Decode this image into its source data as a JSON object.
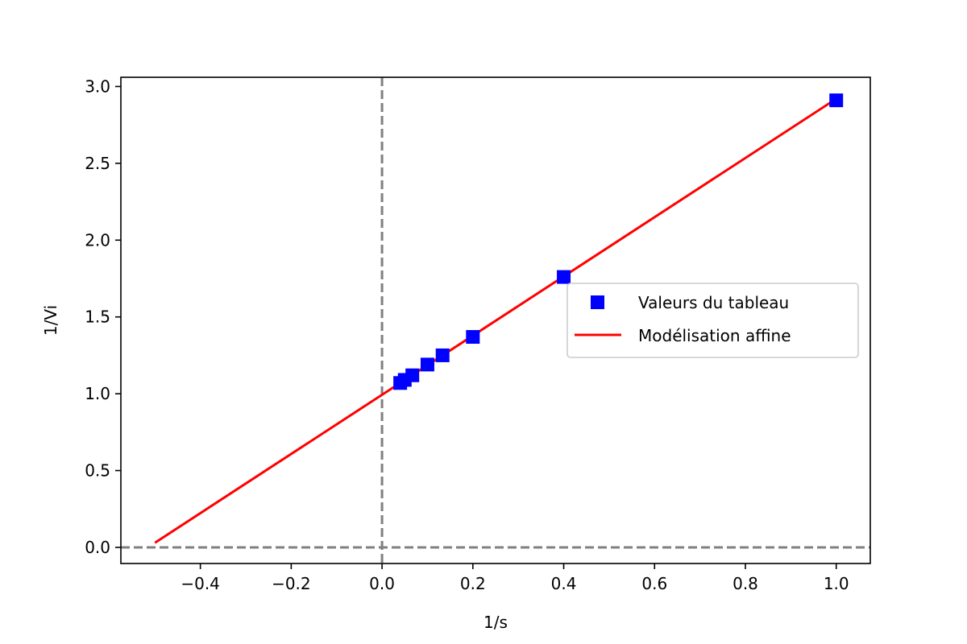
{
  "chart_data": {
    "type": "scatter",
    "xlabel": "1/s",
    "ylabel": "1/Vi",
    "xlim": [
      -0.575,
      1.075
    ],
    "ylim": [
      -0.105,
      3.06
    ],
    "x_ticks": [
      -0.4,
      -0.2,
      0.0,
      0.2,
      0.4,
      0.6,
      0.8,
      1.0
    ],
    "x_tick_labels": [
      "−0.4",
      "−0.2",
      "0.0",
      "0.2",
      "0.4",
      "0.6",
      "0.8",
      "1.0"
    ],
    "y_ticks": [
      0.0,
      0.5,
      1.0,
      1.5,
      2.0,
      2.5,
      3.0
    ],
    "y_tick_labels": [
      "0.0",
      "0.5",
      "1.0",
      "1.5",
      "2.0",
      "2.5",
      "3.0"
    ],
    "grid": false,
    "legend_position": "center-right",
    "series": [
      {
        "name": "Valeurs du tableau",
        "kind": "scatter",
        "marker": "square",
        "color": "#0000ff",
        "x": [
          0.04,
          0.05,
          0.0667,
          0.1,
          0.1333,
          0.2,
          0.4,
          1.0
        ],
        "y": [
          1.07,
          1.09,
          1.12,
          1.19,
          1.25,
          1.37,
          1.76,
          2.91
        ]
      },
      {
        "name": "Modélisation affine",
        "kind": "line",
        "color": "#ff0000",
        "x": [
          -0.5,
          1.0
        ],
        "y": [
          0.03,
          2.92
        ]
      }
    ],
    "reference_lines": [
      {
        "orientation": "vertical",
        "value": 0.0,
        "color": "#808080",
        "style": "dashed"
      },
      {
        "orientation": "horizontal",
        "value": 0.0,
        "color": "#808080",
        "style": "dashed"
      }
    ]
  }
}
